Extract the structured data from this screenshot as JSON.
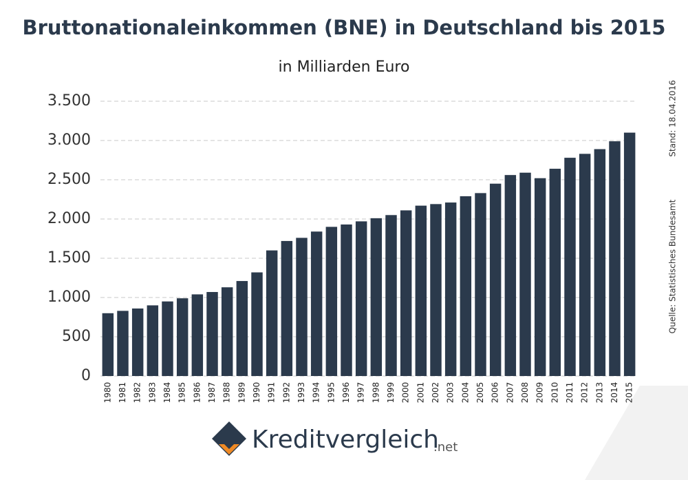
{
  "chart_data": {
    "type": "bar",
    "title": "Bruttonationaleinkommen (BNE) in Deutschland bis 2015",
    "subtitle": "in Milliarden Euro",
    "date_note": "Stand: 18.04.2016",
    "source": "Quelle: Statistisches Bundesamt",
    "brand": "Kreditvergleich",
    "brand_suffix": ".net",
    "categories": [
      "1980",
      "1981",
      "1982",
      "1983",
      "1984",
      "1985",
      "1986",
      "1987",
      "1988",
      "1989",
      "1990",
      "1991",
      "1992",
      "1993",
      "1994",
      "1995",
      "1996",
      "1997",
      "1998",
      "1999",
      "2000",
      "2001",
      "2002",
      "2003",
      "2004",
      "2005",
      "2006",
      "2007",
      "2008",
      "2009",
      "2010",
      "2011",
      "2012",
      "2013",
      "2014",
      "2015"
    ],
    "values": [
      800,
      830,
      860,
      900,
      950,
      990,
      1040,
      1070,
      1130,
      1210,
      1320,
      1600,
      1720,
      1760,
      1840,
      1900,
      1930,
      1970,
      2010,
      2050,
      2110,
      2170,
      2190,
      2210,
      2290,
      2330,
      2450,
      2560,
      2590,
      2520,
      2640,
      2780,
      2830,
      2890,
      2990,
      3100
    ],
    "color": "#2b3a4c",
    "ylim": [
      0,
      3500
    ],
    "yticks": [
      0,
      500,
      {
        "value": 1000,
        "label": "1.000"
      },
      {
        "value": 1500,
        "label": "1.500"
      },
      {
        "value": 2000,
        "label": "2.000"
      },
      {
        "value": 2500,
        "label": "2.500"
      },
      {
        "value": 3000,
        "label": "3.000"
      },
      {
        "value": 3500,
        "label": "3.500"
      }
    ],
    "grid": true
  }
}
